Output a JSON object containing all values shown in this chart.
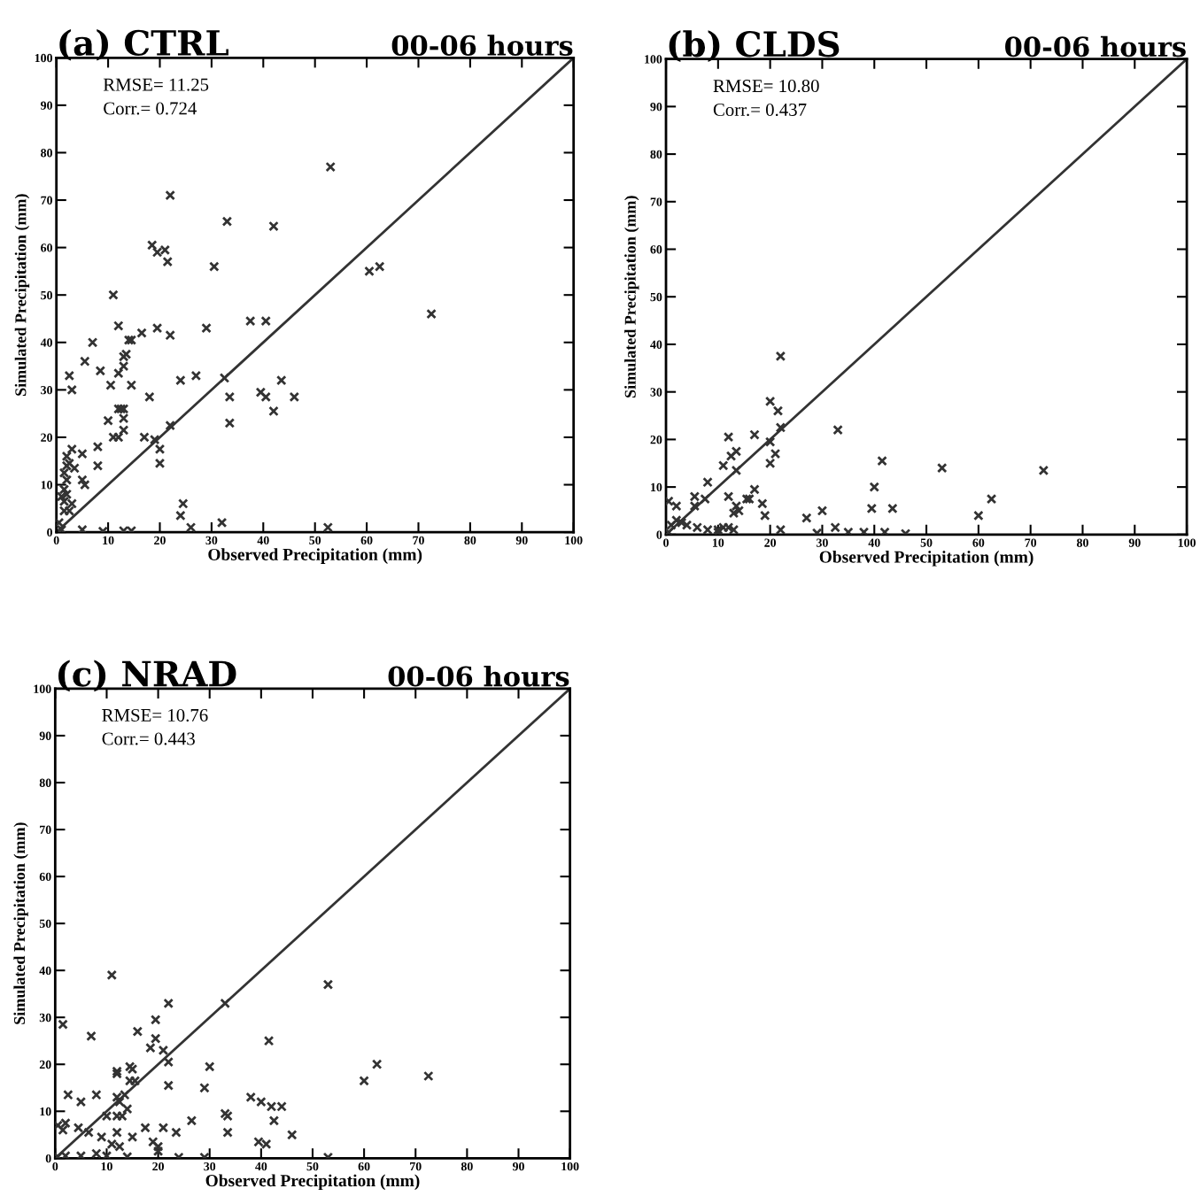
{
  "chart_data": [
    {
      "type": "scatter",
      "title": "(a) CTRL",
      "subtitle": "00-06 hours",
      "xlabel": "Observed Precipitation (mm)",
      "ylabel": "Simulated Precipitation (mm)",
      "annotations": [
        "RMSE= 11.25",
        "Corr.= 0.724"
      ],
      "xlim": [
        0,
        100
      ],
      "ylim": [
        0,
        100
      ],
      "xticks": [
        0,
        10,
        20,
        30,
        40,
        50,
        60,
        70,
        80,
        90,
        100
      ],
      "yticks": [
        0,
        10,
        20,
        30,
        40,
        50,
        60,
        70,
        80,
        90,
        100
      ],
      "marker": "cross",
      "grid": false,
      "legend": false,
      "series": [
        {
          "marker": "cross",
          "color": "#333333",
          "x": [
            53,
            22,
            33,
            42,
            18.5,
            19.5,
            21,
            21.5,
            30.5,
            60.5,
            62.5,
            11,
            72.5,
            37.5,
            40.5,
            12,
            19.5,
            29,
            22,
            16.5,
            14.5,
            14,
            7,
            13.5,
            13,
            5.5,
            8.5,
            12,
            13,
            2.5,
            27,
            24,
            32.5,
            43.5,
            10.5,
            14.5,
            3,
            39.5,
            40.5,
            46,
            33.5,
            18,
            12,
            12.5,
            13,
            13,
            42,
            33.5,
            10,
            13,
            22,
            11,
            12,
            17,
            19,
            20,
            20,
            8,
            5,
            2,
            3,
            2,
            2.5,
            3.5,
            8,
            5,
            5.5,
            1.5,
            2,
            1.5,
            3,
            1.5,
            2.5,
            0.5,
            24.5,
            24,
            26,
            32,
            52.5,
            5,
            9,
            13,
            14.5,
            1,
            1.5,
            2,
            1
          ],
          "values": [
            77,
            71,
            65.5,
            64.5,
            60.5,
            59,
            59.5,
            57,
            56,
            55,
            56,
            50,
            46,
            44.5,
            44.5,
            43.5,
            43,
            43,
            41.5,
            42,
            40.5,
            40.5,
            40,
            37.5,
            37,
            36,
            34,
            33.5,
            35,
            33,
            33,
            32,
            32.5,
            32,
            31,
            31,
            30,
            29.5,
            28.5,
            28.5,
            28.5,
            28.5,
            26,
            26,
            26,
            24,
            25.5,
            23,
            23.5,
            21.5,
            22.5,
            20,
            20,
            20,
            19.5,
            17.5,
            14.5,
            18,
            16.5,
            16,
            17.5,
            14,
            14.5,
            13.5,
            14,
            11,
            10,
            9,
            8,
            6.5,
            6,
            4.5,
            4.5,
            2,
            6,
            3.5,
            1,
            2,
            1,
            0.5,
            0.2,
            0.3,
            0.3,
            0.5,
            12.5,
            11,
            7.5
          ]
        },
        {
          "type": "line",
          "color": "#333333",
          "x": [
            0,
            100
          ],
          "values": [
            0,
            100
          ]
        }
      ]
    },
    {
      "type": "scatter",
      "title": "(b) CLDS",
      "subtitle": "00-06 hours",
      "xlabel": "Observed Precipitation (mm)",
      "ylabel": "Simulated Precipitation (mm)",
      "annotations": [
        "RMSE= 10.80",
        "Corr.= 0.437"
      ],
      "xlim": [
        0,
        100
      ],
      "ylim": [
        0,
        100
      ],
      "xticks": [
        0,
        10,
        20,
        30,
        40,
        50,
        60,
        70,
        80,
        90,
        100
      ],
      "yticks": [
        0,
        10,
        20,
        30,
        40,
        50,
        60,
        70,
        80,
        90,
        100
      ],
      "marker": "cross",
      "grid": false,
      "legend": false,
      "series": [
        {
          "marker": "cross",
          "color": "#333333",
          "x": [
            22,
            20,
            21.5,
            22,
            33,
            17,
            12,
            20,
            12.5,
            13.5,
            21,
            11,
            20,
            13.5,
            41.5,
            53,
            72.5,
            8,
            40,
            17,
            12,
            5.5,
            7.5,
            15.5,
            16,
            13.5,
            0.5,
            2,
            5.5,
            18.5,
            62.5,
            30,
            39.5,
            43.5,
            13,
            14,
            19,
            27,
            60,
            2,
            3,
            1,
            4,
            6,
            8,
            10,
            11,
            12,
            13,
            32.5,
            29,
            38,
            42,
            46,
            0.5,
            22,
            35,
            10
          ],
          "values": [
            37.5,
            28,
            26,
            22.5,
            22,
            21,
            20.5,
            19.5,
            16.5,
            17.5,
            17,
            14.5,
            15,
            13.5,
            15.5,
            14,
            13.5,
            11,
            10,
            9.5,
            8,
            8,
            7.5,
            7.5,
            7.5,
            6,
            7,
            6,
            6,
            6.5,
            7.5,
            5,
            5.5,
            5.5,
            4.5,
            5,
            4,
            3.5,
            4,
            3,
            2.5,
            2,
            2,
            1.5,
            1,
            1,
            1.5,
            1.5,
            1,
            1.5,
            0.3,
            0.5,
            0.5,
            0.2,
            0.5,
            1,
            0.5,
            0.5
          ]
        },
        {
          "type": "line",
          "color": "#333333",
          "x": [
            0,
            100
          ],
          "values": [
            0,
            100
          ]
        }
      ]
    },
    {
      "type": "scatter",
      "title": "(c) NRAD",
      "subtitle": "00-06 hours",
      "xlabel": "Observed Precipitation (mm)",
      "ylabel": "Simulated Precipitation (mm)",
      "annotations": [
        "RMSE= 10.76",
        "Corr.= 0.443"
      ],
      "xlim": [
        0,
        100
      ],
      "ylim": [
        0,
        100
      ],
      "xticks": [
        0,
        10,
        20,
        30,
        40,
        50,
        60,
        70,
        80,
        90,
        100
      ],
      "yticks": [
        0,
        10,
        20,
        30,
        40,
        50,
        60,
        70,
        80,
        90,
        100
      ],
      "marker": "cross",
      "grid": false,
      "legend": false,
      "series": [
        {
          "marker": "cross",
          "color": "#333333",
          "x": [
            11,
            53,
            22,
            33,
            1.5,
            19.5,
            41.5,
            7,
            16,
            19.5,
            18.5,
            21,
            22,
            12,
            12,
            14.5,
            15,
            14.5,
            15.5,
            30,
            62.5,
            72.5,
            60,
            2.5,
            8,
            12,
            13.5,
            12.5,
            14,
            5,
            29,
            22,
            38,
            42,
            44,
            40,
            26.5,
            33,
            33.5,
            42.5,
            10,
            12,
            13,
            2,
            0.5,
            1.5,
            4.5,
            6.5,
            9,
            11,
            12,
            15,
            19,
            17.5,
            21,
            23.5,
            12.5,
            20,
            20,
            33.5,
            46,
            39.5,
            41,
            2,
            5,
            8,
            10,
            14,
            24,
            29,
            53,
            0.5
          ],
          "values": [
            39,
            37,
            33,
            33,
            28.5,
            29.5,
            25,
            26,
            27,
            25.5,
            23.5,
            23,
            20.5,
            18.5,
            18,
            19.5,
            19,
            16.5,
            16.5,
            19.5,
            20,
            17.5,
            16.5,
            13.5,
            13.5,
            13,
            13.5,
            12,
            10.5,
            12,
            15,
            15.5,
            13,
            11,
            11,
            12,
            8,
            9.5,
            9,
            8,
            9,
            9,
            9,
            7.5,
            7,
            6,
            6.5,
            5.5,
            4.5,
            3,
            5.5,
            4.5,
            3.5,
            6.5,
            6.5,
            5.5,
            2.5,
            1.5,
            2.5,
            5.5,
            5,
            3.5,
            3,
            0.5,
            0.5,
            1,
            0.5,
            0.3,
            0.2,
            0.2,
            0.2,
            0.3
          ]
        },
        {
          "type": "line",
          "color": "#333333",
          "x": [
            0,
            100
          ],
          "values": [
            0,
            100
          ]
        }
      ]
    }
  ]
}
